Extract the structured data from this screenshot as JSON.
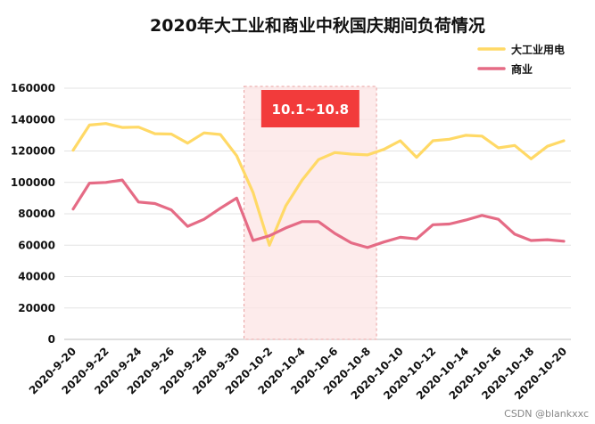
{
  "chart_data": {
    "type": "line",
    "title": "2020年大工业和商业中秋国庆期间负荷情况",
    "xlabel": "",
    "ylabel": "",
    "ylim": [
      0,
      160000
    ],
    "yticks": [
      0,
      20000,
      40000,
      60000,
      80000,
      100000,
      120000,
      140000,
      160000
    ],
    "x": [
      "2020-9-20",
      "2020-9-21",
      "2020-9-22",
      "2020-9-23",
      "2020-9-24",
      "2020-9-25",
      "2020-9-26",
      "2020-9-27",
      "2020-9-28",
      "2020-9-29",
      "2020-9-30",
      "2020-10-1",
      "2020-10-2",
      "2020-10-3",
      "2020-10-4",
      "2020-10-5",
      "2020-10-6",
      "2020-10-7",
      "2020-10-8",
      "2020-10-9",
      "2020-10-10",
      "2020-10-11",
      "2020-10-12",
      "2020-10-13",
      "2020-10-14",
      "2020-10-15",
      "2020-10-16",
      "2020-10-17",
      "2020-10-18",
      "2020-10-19",
      "2020-10-20"
    ],
    "x_tick_labels": [
      "2020-9-20",
      "2020-9-22",
      "2020-9-24",
      "2020-9-26",
      "2020-9-28",
      "2020-9-30",
      "2020-10-2",
      "2020-10-4",
      "2020-10-6",
      "2020-10-8",
      "2020-10-10",
      "2020-10-12",
      "2020-10-14",
      "2020-10-16",
      "2020-10-18",
      "2020-10-20"
    ],
    "series": [
      {
        "name": "大工业用电",
        "color": "#FFD966",
        "values": [
          120500,
          136500,
          137500,
          135000,
          135200,
          131000,
          130800,
          125000,
          131500,
          130500,
          117000,
          93500,
          60000,
          85000,
          101500,
          114500,
          119000,
          118000,
          117500,
          121000,
          126500,
          116000,
          126500,
          127500,
          130000,
          129500,
          122000,
          123500,
          115000,
          123000,
          126500
        ]
      },
      {
        "name": "商业",
        "color": "#E56B85",
        "values": [
          83000,
          99500,
          100000,
          101500,
          87500,
          86500,
          82500,
          72000,
          76500,
          83500,
          90000,
          63000,
          66000,
          71000,
          75000,
          75000,
          67500,
          61500,
          58500,
          62000,
          65000,
          64000,
          73000,
          73500,
          76000,
          79000,
          76500,
          67000,
          63000,
          63500,
          62500
        ]
      }
    ],
    "highlight": {
      "from": "2020-10-1",
      "to": "2020-10-8",
      "label": "10.1~10.8",
      "fill": "#FCE4E4",
      "badge_color": "#F23B3B"
    },
    "legend_position": "top-right",
    "grid": "horizontal"
  },
  "watermark": "CSDN @blankxxc"
}
